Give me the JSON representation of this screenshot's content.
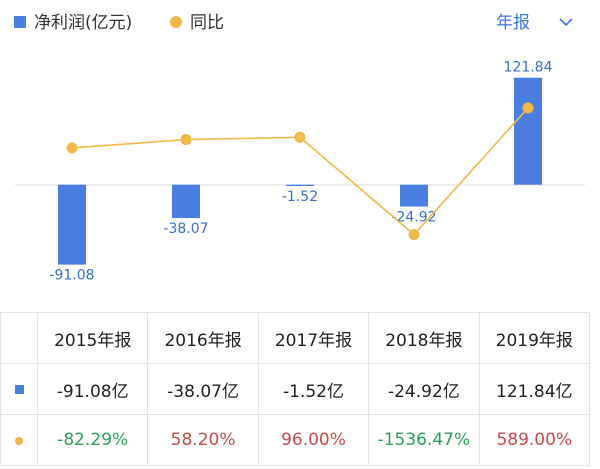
{
  "chart_data": {
    "type": "bar",
    "series": [
      {
        "name": "净利润(亿元)",
        "color": "#4a7ee0",
        "values": [
          -91.08,
          -38.07,
          -1.52,
          -24.92,
          121.84
        ]
      },
      {
        "name": "同比",
        "type": "line",
        "axis": "y2",
        "color": "#f0b94a",
        "values": [
          -82.29,
          58.2,
          96,
          -1536.47,
          589
        ]
      }
    ],
    "ylim": [
      -120,
      142
    ],
    "y2lim": [
      -2466,
      1393
    ]
  },
  "period_selector": "年报",
  "table": {
    "header": [
      "2015年报",
      "2016年报",
      "2017年报",
      "2018年报",
      "2019年报"
    ],
    "rows": [
      [
        "-91.08亿",
        "-38.07亿",
        "-1.52亿",
        "-24.92亿",
        "121.84亿"
      ],
      [
        "-82.29%",
        "58.20%",
        "96.00%",
        "-1536.47%",
        "589.00%"
      ]
    ],
    "row_colors": [
      [
        "#222222",
        "#222222",
        "#222222",
        "#222222",
        "#222222"
      ],
      [
        "#2e9e5b",
        "#c94a4a",
        "#c94a4a",
        "#2e9e5b",
        "#c94a4a"
      ]
    ]
  }
}
